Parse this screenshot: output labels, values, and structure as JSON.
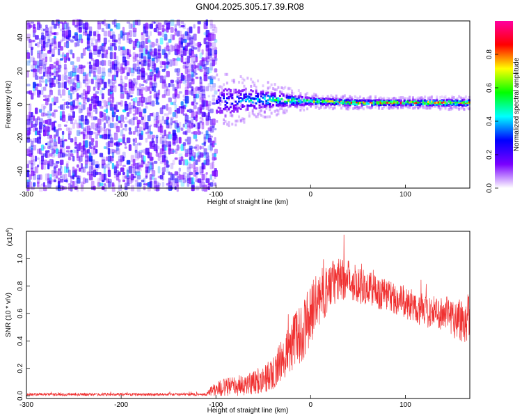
{
  "title": "GN04.2025.305.17.39.R08",
  "chart_data": [
    {
      "type": "heatmap",
      "name": "spectrogram",
      "xlabel": "Height of straight line (km)",
      "ylabel": "Frequency (Hz)",
      "xlim": [
        -300,
        168
      ],
      "ylim": [
        -50,
        50
      ],
      "xticks": [
        -300,
        -200,
        -100,
        0,
        100
      ],
      "yticks": [
        -40,
        -20,
        0,
        20,
        40
      ],
      "xtick_labels": [
        "-300",
        "-200",
        "-100",
        "0",
        "100"
      ],
      "ytick_labels": [
        "-40",
        "-20",
        "0",
        "20",
        "40"
      ],
      "colorbar": {
        "label": "Normalized spectral amplitude",
        "range": [
          0,
          1
        ],
        "ticks": [
          0.0,
          0.2,
          0.4,
          0.6,
          0.8
        ],
        "tick_labels": [
          "0.0",
          "0.2",
          "0.4",
          "0.6",
          "0.8"
        ],
        "colors": [
          "#ffffff",
          "#7a00ff",
          "#0000ff",
          "#00ffff",
          "#00ff00",
          "#ffff00",
          "#ff0000",
          "#ff00a0"
        ]
      },
      "regions": {
        "noise_region_x": [
          -300,
          -100
        ],
        "noise_amplitude": 0.15,
        "signal_band_center_hz": [
          [
            -100,
            2
          ],
          [
            -50,
            3
          ],
          [
            0,
            2
          ],
          [
            50,
            1
          ],
          [
            100,
            1
          ],
          [
            168,
            1
          ]
        ],
        "signal_band_halfwidth_hz": [
          [
            -100,
            8
          ],
          [
            -50,
            5
          ],
          [
            0,
            2
          ],
          [
            100,
            1.5
          ],
          [
            168,
            2
          ]
        ],
        "signal_peak_amplitude": [
          [
            -100,
            0.3
          ],
          [
            -50,
            0.55
          ],
          [
            0,
            0.75
          ],
          [
            50,
            0.85
          ],
          [
            100,
            0.95
          ],
          [
            168,
            0.85
          ]
        ]
      }
    },
    {
      "type": "line",
      "name": "snr",
      "xlabel": "Height of straight line (km)",
      "ylabel": "SNR (10 * v/v)",
      "multiplier_label": "(x10",
      "multiplier_exp": "4",
      "multiplier_close": ")",
      "xlim": [
        -300,
        168
      ],
      "ylim": [
        -0.02,
        1.2
      ],
      "xticks": [
        -300,
        -200,
        -100,
        0,
        100
      ],
      "yticks": [
        0.0,
        0.2,
        0.4,
        0.6,
        0.8,
        1.0
      ],
      "xtick_labels": [
        "-300",
        "-200",
        "-100",
        "0",
        "100"
      ],
      "ytick_labels": [
        "0.0",
        "0.2",
        "0.4",
        "0.6",
        "0.8",
        "1.0"
      ],
      "color": "#f03030",
      "envelope_x": [
        -300,
        -110,
        -105,
        -90,
        -70,
        -50,
        -40,
        -30,
        -20,
        -10,
        0,
        10,
        20,
        30,
        40,
        50,
        60,
        80,
        100,
        120,
        140,
        150,
        160,
        168
      ],
      "envelope_mean": [
        0.01,
        0.01,
        0.04,
        0.06,
        0.08,
        0.12,
        0.16,
        0.26,
        0.38,
        0.45,
        0.6,
        0.72,
        0.8,
        0.85,
        0.85,
        0.82,
        0.78,
        0.74,
        0.68,
        0.62,
        0.6,
        0.58,
        0.55,
        0.6
      ],
      "envelope_spread": [
        0.01,
        0.01,
        0.05,
        0.07,
        0.08,
        0.1,
        0.12,
        0.16,
        0.2,
        0.22,
        0.22,
        0.2,
        0.18,
        0.16,
        0.15,
        0.14,
        0.14,
        0.12,
        0.12,
        0.12,
        0.12,
        0.15,
        0.18,
        0.2
      ]
    }
  ]
}
